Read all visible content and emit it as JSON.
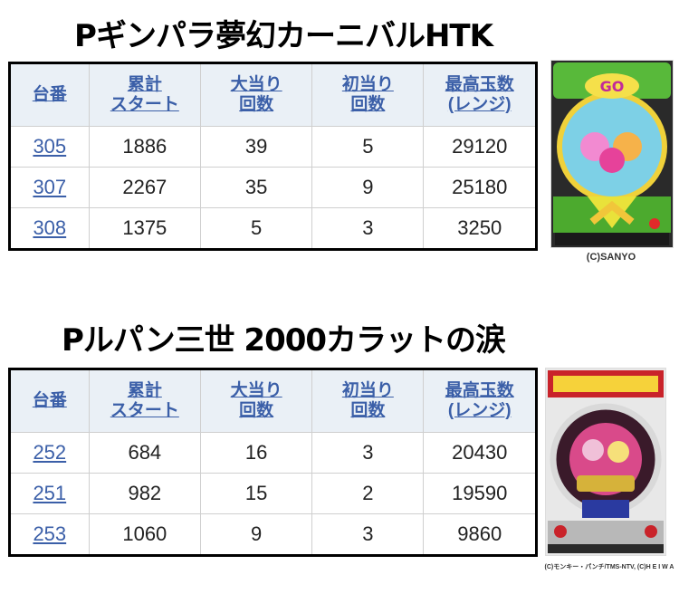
{
  "headers": {
    "col1": "台番",
    "col2_line1": "累計",
    "col2_line2": "スタート",
    "col3_line1": "大当り",
    "col3_line2": "回数",
    "col4_line1": "初当り",
    "col4_line2": "回数",
    "col5_line1": "最高玉数",
    "col5_line2": "(レンジ)"
  },
  "sections": [
    {
      "title": "Pギンパラ夢幻カーニバルHTK",
      "credit": "(C)SANYO",
      "rows": [
        {
          "machine_no": "305",
          "total_start": "1886",
          "jackpots": "39",
          "first_hits": "5",
          "max_balls": "29120"
        },
        {
          "machine_no": "307",
          "total_start": "2267",
          "jackpots": "35",
          "first_hits": "9",
          "max_balls": "25180"
        },
        {
          "machine_no": "308",
          "total_start": "1375",
          "jackpots": "5",
          "first_hits": "3",
          "max_balls": "3250"
        }
      ]
    },
    {
      "title": "Pルパン三世 2000カラットの涙",
      "credit": "(C)モンキー・パンチ/TMS-NTV, (C)H E I W A",
      "rows": [
        {
          "machine_no": "252",
          "total_start": "684",
          "jackpots": "16",
          "first_hits": "3",
          "max_balls": "20430"
        },
        {
          "machine_no": "251",
          "total_start": "982",
          "jackpots": "15",
          "first_hits": "2",
          "max_balls": "19590"
        },
        {
          "machine_no": "253",
          "total_start": "1060",
          "jackpots": "9",
          "first_hits": "3",
          "max_balls": "9860"
        }
      ]
    }
  ]
}
